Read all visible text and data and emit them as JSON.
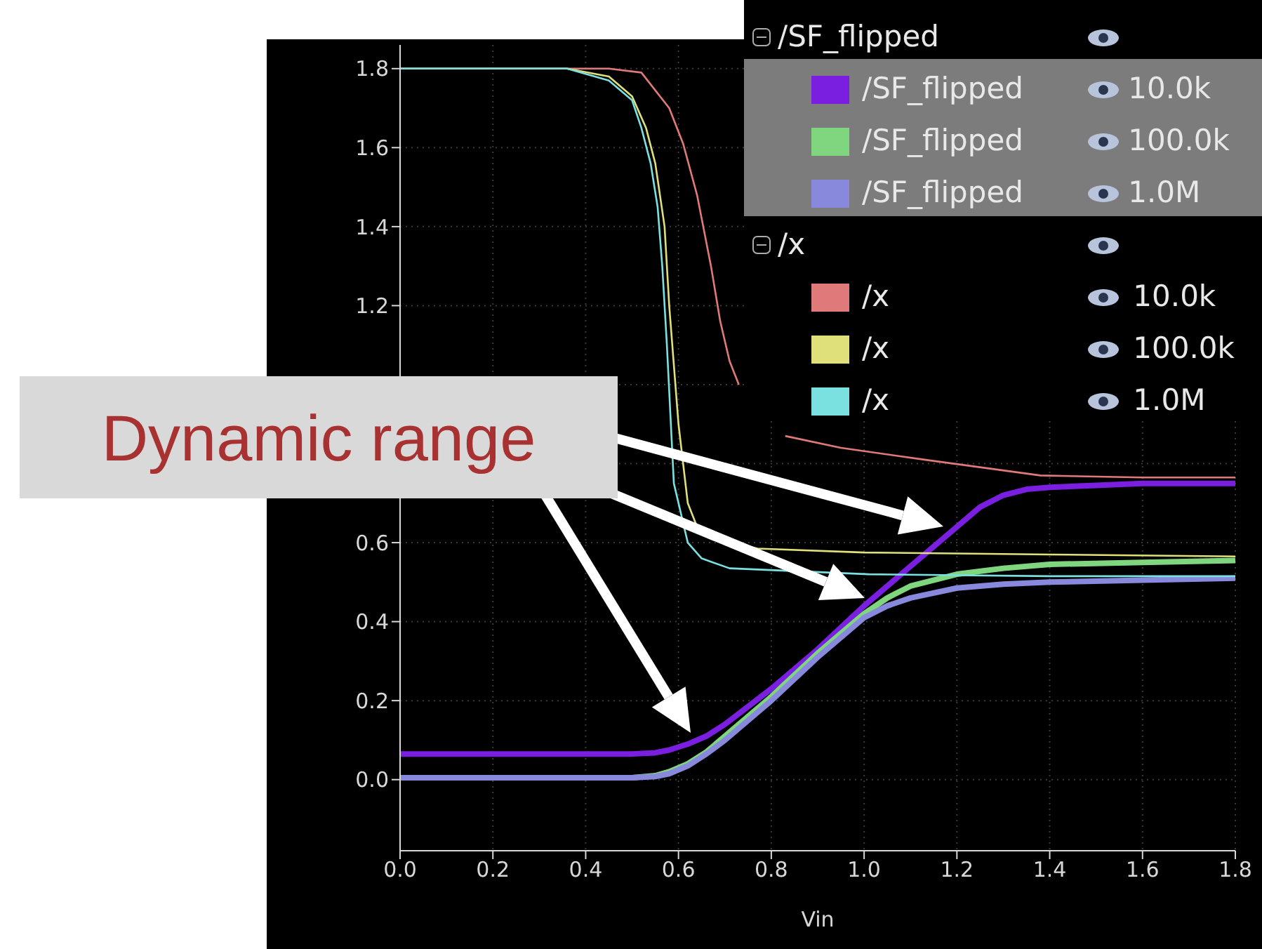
{
  "chart_data": {
    "type": "line",
    "xlabel": "Vin",
    "annotations": [
      "Dynamic range",
      "/SF_flipped",
      "/x"
    ],
    "xlim": [
      0,
      1.8
    ],
    "xticks": [
      {
        "value": 0,
        "label": "0.0"
      },
      {
        "value": 0.2,
        "label": "0.2"
      },
      {
        "value": 0.4,
        "label": "0.4"
      },
      {
        "value": 0.6,
        "label": "0.6"
      },
      {
        "value": 0.8,
        "label": "0.8"
      },
      {
        "value": 1.0,
        "label": "1.0"
      },
      {
        "value": 1.2,
        "label": "1.2"
      },
      {
        "value": 1.4,
        "label": "1.4"
      },
      {
        "value": 1.6,
        "label": "1.6"
      },
      {
        "value": 1.8,
        "label": "1.8"
      }
    ],
    "ylim": [
      -0.18,
      1.86
    ],
    "yticks": [
      {
        "value": 0,
        "label": "0.0"
      },
      {
        "value": 0.2,
        "label": "0.2"
      },
      {
        "value": 0.4,
        "label": "0.4"
      },
      {
        "value": 0.6,
        "label": "0.6"
      },
      {
        "value": 0.8,
        "label": null
      },
      {
        "value": 1.0,
        "label": null
      },
      {
        "value": 1.2,
        "label": "1.2"
      },
      {
        "value": 1.4,
        "label": "1.4"
      },
      {
        "value": 1.6,
        "label": "1.6"
      },
      {
        "value": 1.8,
        "label": "1.8"
      }
    ],
    "grid": true,
    "legend": "top right",
    "marker": "none",
    "series": [
      {
        "name": "/SF_flipped 10.0k",
        "color": "#7a1fe0",
        "x": [
          0,
          0.5,
          0.55,
          0.58,
          0.62,
          0.66,
          0.7,
          0.8,
          0.9,
          1.0,
          1.1,
          1.2,
          1.25,
          1.3,
          1.35,
          1.4,
          1.5,
          1.6,
          1.8
        ],
        "values": [
          0.065,
          0.065,
          0.068,
          0.075,
          0.09,
          0.11,
          0.14,
          0.23,
          0.33,
          0.44,
          0.54,
          0.64,
          0.69,
          0.72,
          0.735,
          0.74,
          0.745,
          0.75,
          0.75
        ]
      },
      {
        "name": "/SF_flipped 100.0k",
        "color": "#7fd67f",
        "x": [
          0,
          0.5,
          0.55,
          0.58,
          0.62,
          0.66,
          0.7,
          0.8,
          0.9,
          1.0,
          1.05,
          1.1,
          1.2,
          1.3,
          1.4,
          1.6,
          1.8
        ],
        "values": [
          0.005,
          0.005,
          0.01,
          0.02,
          0.04,
          0.07,
          0.11,
          0.21,
          0.32,
          0.42,
          0.46,
          0.49,
          0.52,
          0.535,
          0.545,
          0.55,
          0.555
        ]
      },
      {
        "name": "/SF_flipped 1.0M",
        "color": "#8888dd",
        "x": [
          0,
          0.5,
          0.55,
          0.58,
          0.62,
          0.66,
          0.7,
          0.8,
          0.9,
          1.0,
          1.05,
          1.1,
          1.2,
          1.3,
          1.4,
          1.6,
          1.8
        ],
        "values": [
          0.005,
          0.005,
          0.008,
          0.015,
          0.035,
          0.065,
          0.1,
          0.2,
          0.31,
          0.41,
          0.44,
          0.46,
          0.485,
          0.495,
          0.5,
          0.505,
          0.51
        ]
      },
      {
        "name": "/x 10.0k",
        "color": "#e07a7a",
        "x": [
          0,
          0.45,
          0.52,
          0.58,
          0.61,
          0.64,
          0.67,
          0.69,
          0.71,
          0.73,
          0.76,
          0.83,
          0.95,
          1.13,
          1.38,
          1.6,
          1.8
        ],
        "values": [
          1.8,
          1.8,
          1.79,
          1.7,
          1.61,
          1.48,
          1.3,
          1.16,
          1.06,
          1.0,
          null,
          0.87,
          0.84,
          0.81,
          0.77,
          0.765,
          0.765
        ]
      },
      {
        "name": "/x 100.0k",
        "color": "#e0e07a",
        "x": [
          0,
          0.36,
          0.45,
          0.5,
          0.53,
          0.55,
          0.57,
          0.58,
          0.6,
          0.62,
          0.64,
          0.67,
          0.77,
          1.0,
          1.4,
          1.8
        ],
        "values": [
          1.8,
          1.8,
          1.78,
          1.73,
          1.65,
          1.56,
          1.4,
          1.2,
          0.9,
          0.7,
          0.64,
          0.615,
          0.585,
          0.575,
          0.57,
          0.565
        ]
      },
      {
        "name": "/x 1.0M",
        "color": "#7ae0e0",
        "x": [
          0,
          0.36,
          0.45,
          0.5,
          0.52,
          0.54,
          0.555,
          0.565,
          0.575,
          0.59,
          0.62,
          0.65,
          0.71,
          1.01,
          1.4,
          1.8
        ],
        "values": [
          1.8,
          1.8,
          1.77,
          1.72,
          1.65,
          1.56,
          1.45,
          1.3,
          1.1,
          0.75,
          0.6,
          0.56,
          0.535,
          0.52,
          0.515,
          0.515
        ]
      }
    ]
  }
}
